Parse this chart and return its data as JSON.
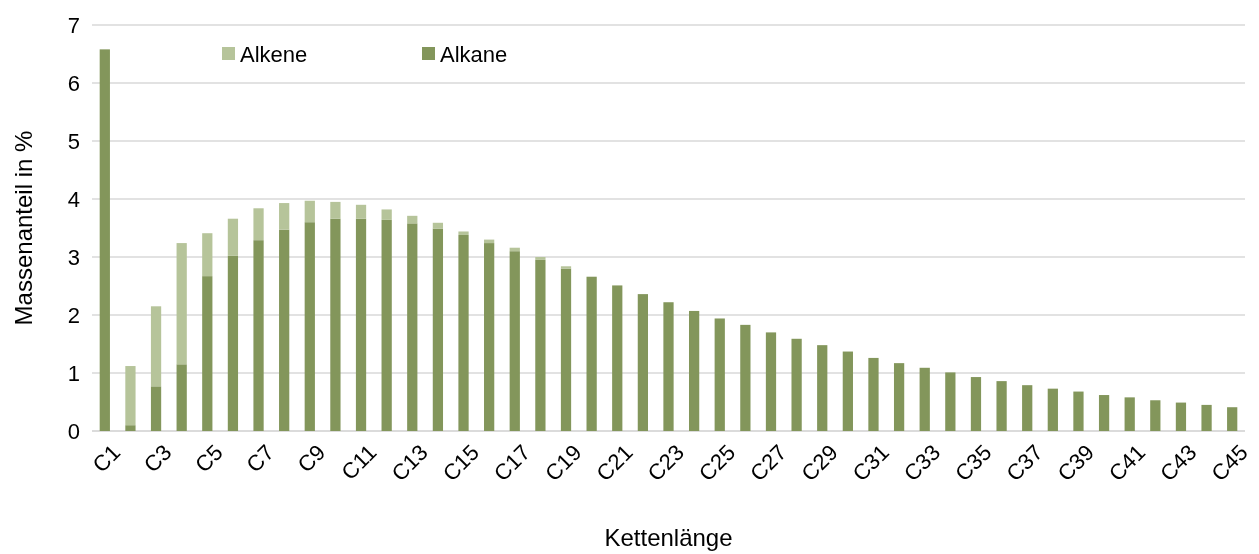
{
  "chart_data": {
    "type": "bar",
    "stacked": true,
    "xlabel": "Kettenlänge",
    "ylabel": "Massenanteil in %",
    "categories": [
      "C1",
      null,
      "C3",
      null,
      "C5",
      null,
      "C7",
      null,
      "C9",
      null,
      "C11",
      null,
      "C13",
      null,
      "C15",
      null,
      "C17",
      null,
      "C19",
      null,
      "C21",
      null,
      "C23",
      null,
      "C25",
      null,
      "C27",
      null,
      "C29",
      null,
      "C31",
      null,
      "C33",
      null,
      "C35",
      null,
      "C37",
      null,
      "C39",
      null,
      "C41",
      null,
      "C43",
      null,
      "C45"
    ],
    "series": [
      {
        "name": "Alkane",
        "color": "#83965b",
        "values": [
          6.58,
          0.1,
          0.77,
          1.15,
          2.67,
          3.02,
          3.29,
          3.47,
          3.6,
          3.66,
          3.66,
          3.64,
          3.58,
          3.49,
          3.38,
          3.24,
          3.1,
          2.95,
          2.8,
          2.66,
          2.51,
          2.36,
          2.22,
          2.07,
          1.94,
          1.83,
          1.7,
          1.59,
          1.48,
          1.37,
          1.26,
          1.17,
          1.09,
          1.01,
          0.93,
          0.86,
          0.79,
          0.73,
          0.68,
          0.62,
          0.58,
          0.53,
          0.49,
          0.45,
          0.41
        ]
      },
      {
        "name": "Alkene",
        "color": "#b6c49a",
        "values": [
          0,
          1.02,
          1.38,
          2.09,
          0.74,
          0.64,
          0.55,
          0.46,
          0.37,
          0.29,
          0.24,
          0.18,
          0.13,
          0.1,
          0.06,
          0.06,
          0.06,
          0.05,
          0.04,
          0,
          0,
          0,
          0,
          0,
          0,
          0,
          0,
          0,
          0,
          0,
          0,
          0,
          0,
          0,
          0,
          0,
          0,
          0,
          0,
          0,
          0,
          0,
          0,
          0,
          0
        ]
      }
    ],
    "ylim": [
      0,
      7
    ],
    "yticks": [
      0,
      1,
      2,
      3,
      4,
      5,
      6,
      7
    ],
    "grid": "y",
    "legend": "top"
  }
}
